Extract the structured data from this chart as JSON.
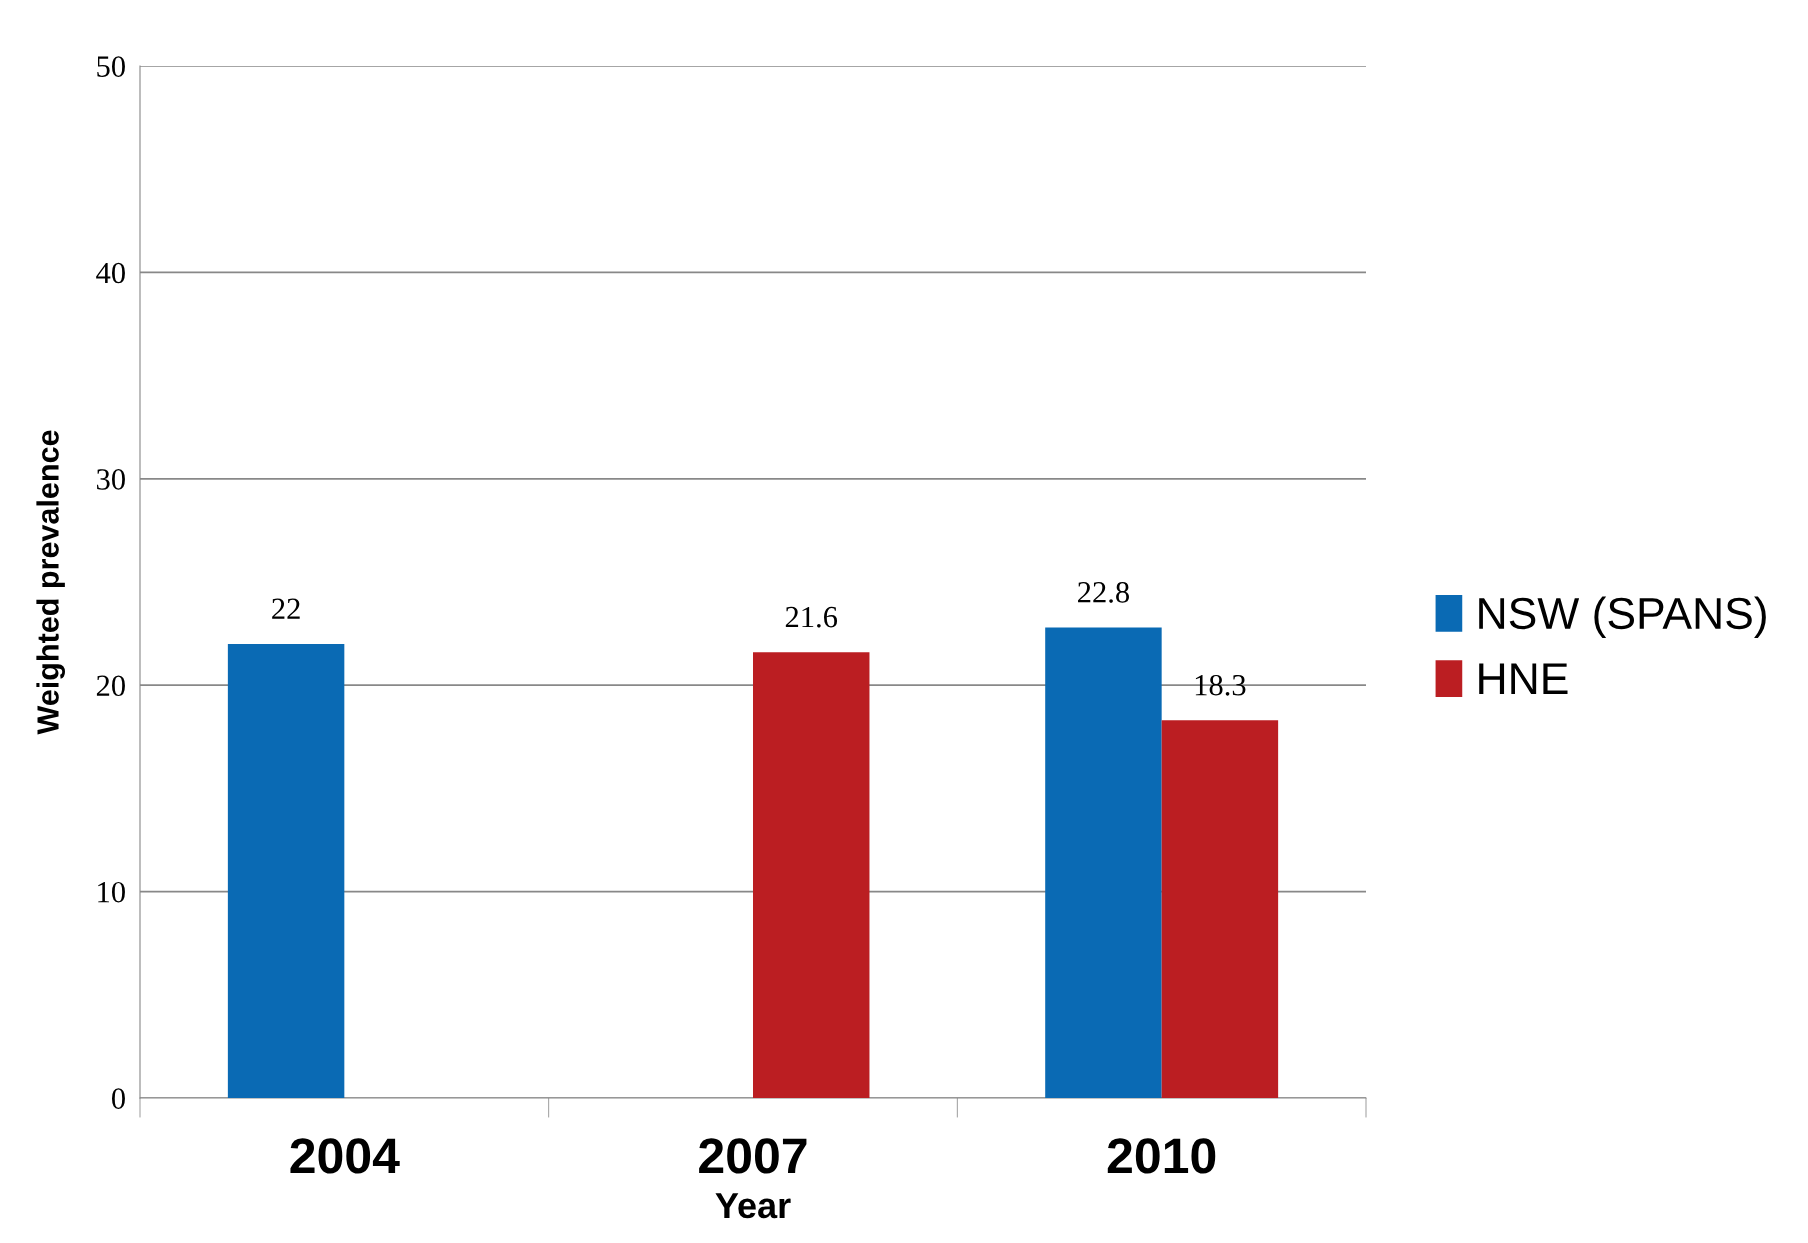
{
  "chart_data": {
    "type": "bar",
    "xlabel": "Year",
    "ylabel": "Weighted prevalence",
    "categories": [
      "2004",
      "2007",
      "2010"
    ],
    "series": [
      {
        "name": "NSW (SPANS)",
        "color": "#0a6ab4",
        "values": [
          22,
          null,
          22.8
        ]
      },
      {
        "name": "HNE",
        "color": "#bb1e22",
        "values": [
          null,
          21.6,
          18.3
        ]
      }
    ],
    "ylim": [
      0,
      50
    ],
    "yticks": [
      0,
      10,
      20,
      30,
      40,
      50
    ],
    "grid": "y",
    "legend": "right",
    "data_labels": true
  }
}
